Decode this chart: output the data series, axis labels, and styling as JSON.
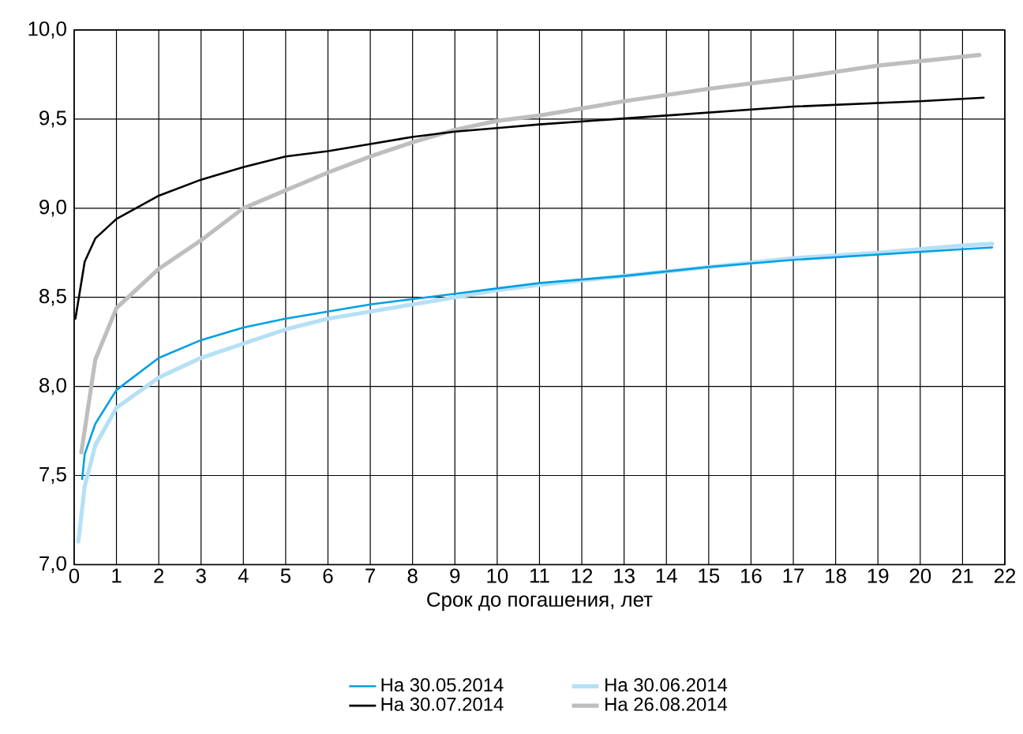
{
  "chart_data": {
    "type": "line",
    "xlabel": "Срок до погашения, лет",
    "xlim": [
      0,
      22
    ],
    "xticks": [
      0,
      1,
      2,
      3,
      4,
      5,
      6,
      7,
      8,
      9,
      10,
      11,
      12,
      13,
      14,
      15,
      16,
      17,
      18,
      19,
      20,
      21,
      22
    ],
    "ylim": [
      7,
      10
    ],
    "yticks": [
      {
        "value": 7,
        "label": "7,0"
      },
      {
        "value": 7.5,
        "label": "7,5"
      },
      {
        "value": 8,
        "label": "8,0"
      },
      {
        "value": 8.5,
        "label": "8,5"
      },
      {
        "value": 9,
        "label": "9,0"
      },
      {
        "value": 9.5,
        "label": "9,5"
      },
      {
        "value": 10,
        "label": "10,0"
      }
    ],
    "grid": true,
    "legend": "bottom",
    "series": [
      {
        "name": "На 30.05.2014",
        "color": "#00a0e3",
        "x": [
          0.19,
          0.25,
          0.5,
          1,
          2,
          3,
          4,
          5,
          6,
          7,
          8,
          9,
          10,
          11,
          13,
          15,
          17,
          19,
          21,
          21.7
        ],
        "values": [
          7.48,
          7.62,
          7.79,
          7.98,
          8.16,
          8.26,
          8.33,
          8.38,
          8.42,
          8.46,
          8.49,
          8.52,
          8.55,
          8.58,
          8.62,
          8.67,
          8.71,
          8.74,
          8.77,
          8.78
        ]
      },
      {
        "name": "На 30.06.2014",
        "color": "#b5e0f5",
        "x": [
          0.1,
          0.25,
          0.5,
          1,
          2,
          3,
          4,
          5,
          6,
          7,
          8,
          9,
          10,
          11,
          13,
          15,
          17,
          19,
          21,
          21.7
        ],
        "values": [
          7.13,
          7.44,
          7.67,
          7.88,
          8.05,
          8.16,
          8.24,
          8.32,
          8.38,
          8.42,
          8.46,
          8.5,
          8.54,
          8.57,
          8.62,
          8.67,
          8.72,
          8.75,
          8.79,
          8.8
        ]
      },
      {
        "name": "На 30.07.2014",
        "color": "#000000",
        "x": [
          0.03,
          0.25,
          0.5,
          1,
          2,
          3,
          4,
          5,
          6,
          7,
          8,
          9,
          10,
          11,
          14,
          17,
          20,
          21.5
        ],
        "values": [
          8.38,
          8.7,
          8.83,
          8.94,
          9.07,
          9.16,
          9.23,
          9.29,
          9.32,
          9.36,
          9.4,
          9.43,
          9.45,
          9.47,
          9.52,
          9.57,
          9.6,
          9.62
        ]
      },
      {
        "name": "На 26.08.2014",
        "color": "#bebebe",
        "x": [
          0.17,
          0.5,
          1,
          2,
          3,
          4,
          5,
          6,
          7,
          8,
          9,
          10,
          11,
          13,
          15,
          17,
          19,
          21,
          21.4
        ],
        "values": [
          7.63,
          8.15,
          8.44,
          8.66,
          8.82,
          9.0,
          9.1,
          9.2,
          9.29,
          9.37,
          9.44,
          9.49,
          9.52,
          9.6,
          9.67,
          9.73,
          9.8,
          9.85,
          9.86
        ]
      }
    ]
  }
}
